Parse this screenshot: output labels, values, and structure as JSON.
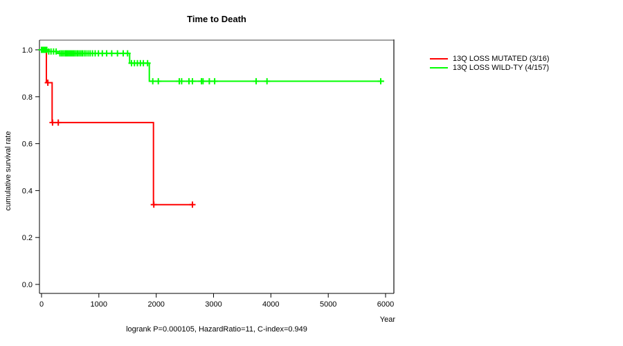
{
  "chart_data": {
    "type": "line",
    "subtype": "kaplan-meier-step",
    "title": "Time to Death",
    "xlabel": "Year",
    "ylabel": "cumulative survival rate",
    "annotation": "logrank P=0.000105, HazardRatio=11, C-index=0.949",
    "xticks": [
      0,
      1000,
      2000,
      3000,
      4000,
      5000,
      6000
    ],
    "yticks": [
      1.0,
      0.8,
      0.6,
      0.4,
      0.2,
      0.0
    ],
    "xlim": [
      0,
      6200
    ],
    "ylim": [
      0,
      1.04
    ],
    "grid": false,
    "legend_position": "right-outside",
    "series": [
      {
        "name": "13Q LOSS MUTATED (3/16)",
        "color": "#ff0000",
        "events_over_n": "3/16",
        "steps": [
          [
            0,
            1.0
          ],
          [
            85,
            0.86
          ],
          [
            185,
            0.69
          ],
          [
            1952,
            0.34
          ],
          [
            2650,
            0.34
          ]
        ],
        "censor_marks": [
          [
            110,
            0.86
          ],
          [
            192,
            0.69
          ],
          [
            292,
            0.69
          ],
          [
            1958,
            0.34
          ],
          [
            2632,
            0.34
          ]
        ]
      },
      {
        "name": "13Q LOSS WILD-TY (4/157)",
        "color": "#00ff00",
        "events_over_n": "4/157",
        "steps": [
          [
            0,
            1.0
          ],
          [
            105,
            0.993
          ],
          [
            286,
            0.985
          ],
          [
            1537,
            0.943
          ],
          [
            1880,
            0.866
          ],
          [
            5975,
            0.866
          ]
        ],
        "censor_marks": [
          [
            0,
            1.0
          ],
          [
            6,
            1.0
          ],
          [
            12,
            1.0
          ],
          [
            18,
            1.0
          ],
          [
            24,
            1.0
          ],
          [
            30,
            1.0
          ],
          [
            36,
            1.0
          ],
          [
            42,
            1.0
          ],
          [
            48,
            1.0
          ],
          [
            54,
            1.0
          ],
          [
            62,
            1.0
          ],
          [
            72,
            1.0
          ],
          [
            82,
            1.0
          ],
          [
            92,
            1.0
          ],
          [
            125,
            0.993
          ],
          [
            165,
            0.993
          ],
          [
            210,
            0.993
          ],
          [
            255,
            0.993
          ],
          [
            320,
            0.985
          ],
          [
            348,
            0.985
          ],
          [
            376,
            0.985
          ],
          [
            404,
            0.985
          ],
          [
            428,
            0.985
          ],
          [
            452,
            0.985
          ],
          [
            476,
            0.985
          ],
          [
            500,
            0.985
          ],
          [
            524,
            0.985
          ],
          [
            548,
            0.985
          ],
          [
            572,
            0.985
          ],
          [
            600,
            0.985
          ],
          [
            628,
            0.985
          ],
          [
            656,
            0.985
          ],
          [
            684,
            0.985
          ],
          [
            712,
            0.985
          ],
          [
            744,
            0.985
          ],
          [
            776,
            0.985
          ],
          [
            812,
            0.985
          ],
          [
            848,
            0.985
          ],
          [
            888,
            0.985
          ],
          [
            936,
            0.985
          ],
          [
            992,
            0.985
          ],
          [
            1060,
            0.985
          ],
          [
            1136,
            0.985
          ],
          [
            1224,
            0.985
          ],
          [
            1324,
            0.985
          ],
          [
            1424,
            0.985
          ],
          [
            1500,
            0.985
          ],
          [
            1570,
            0.943
          ],
          [
            1620,
            0.943
          ],
          [
            1672,
            0.943
          ],
          [
            1724,
            0.943
          ],
          [
            1776,
            0.943
          ],
          [
            1850,
            0.943
          ],
          [
            1940,
            0.866
          ],
          [
            2037,
            0.866
          ],
          [
            2403,
            0.866
          ],
          [
            2443,
            0.866
          ],
          [
            2572,
            0.866
          ],
          [
            2632,
            0.866
          ],
          [
            2789,
            0.866
          ],
          [
            2817,
            0.866
          ],
          [
            2926,
            0.866
          ],
          [
            3019,
            0.866
          ],
          [
            3743,
            0.866
          ],
          [
            3932,
            0.866
          ],
          [
            5915,
            0.866
          ]
        ]
      }
    ]
  }
}
